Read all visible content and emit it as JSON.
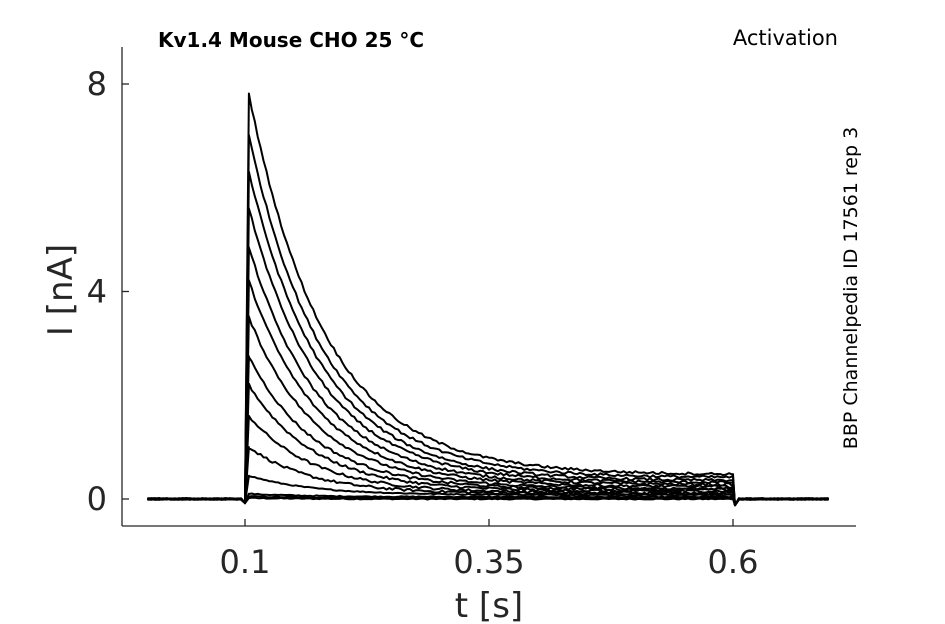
{
  "title": "Kv1.4  Mouse  CHO  25 °C",
  "protocol": "Activation",
  "source": "BBP Channelpedia ID 17561 rep 3",
  "chart_data": {
    "type": "line",
    "xlabel": "t [s]",
    "ylabel": "I [nA]",
    "xlim": [
      -0.0,
      0.75
    ],
    "ylim": [
      -0.5,
      8.7
    ],
    "xticks": [
      0.1,
      0.35,
      0.6
    ],
    "xtick_labels": [
      "0.1",
      "0.35",
      "0.6"
    ],
    "yticks": [
      0,
      4,
      8
    ],
    "ytick_labels": [
      "0",
      "4",
      "8"
    ],
    "grid": false,
    "baseline_x_range": [
      0.0,
      0.7
    ],
    "step_onset": 0.1,
    "step_offset": 0.6,
    "series_peaks": [
      0.02,
      0.05,
      0.1,
      0.45,
      1.0,
      1.6,
      2.2,
      2.75,
      3.5,
      4.2,
      4.85,
      5.6,
      6.3,
      7.0,
      7.8
    ],
    "series_end_values": [
      0.0,
      0.02,
      0.04,
      0.08,
      0.1,
      0.12,
      0.15,
      0.18,
      0.2,
      0.24,
      0.28,
      0.32,
      0.36,
      0.42,
      0.48
    ]
  }
}
